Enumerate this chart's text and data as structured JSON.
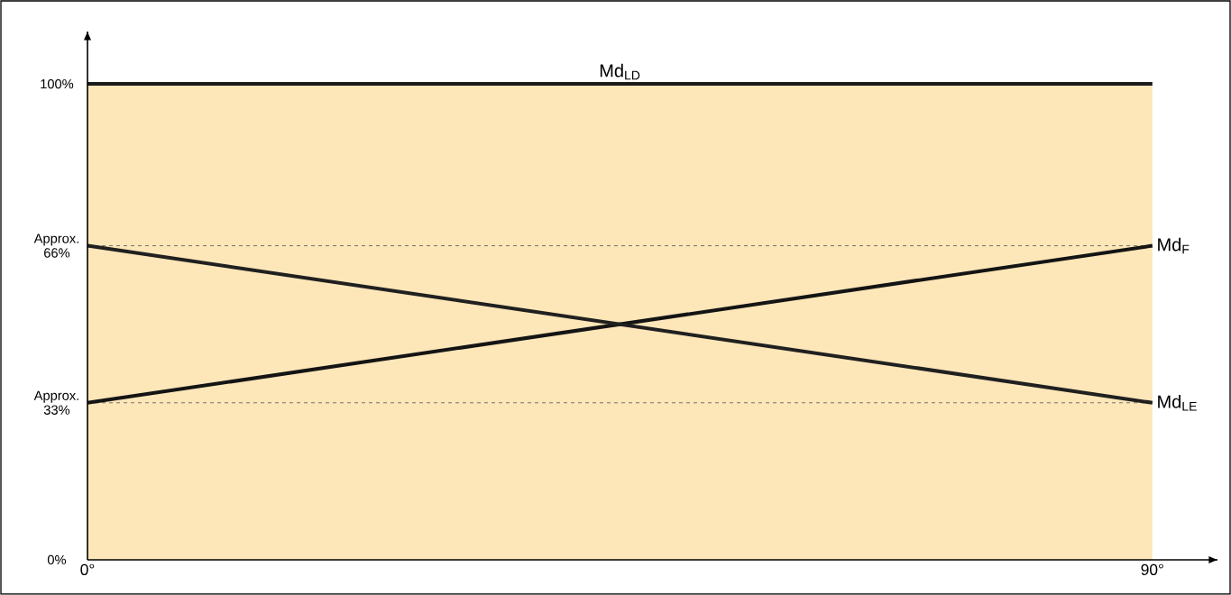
{
  "chart_data": {
    "type": "line",
    "xlim": [
      0,
      95.5
    ],
    "ylim": [
      0,
      111
    ],
    "xticks": [
      {
        "value": 0,
        "label": "0°"
      },
      {
        "value": 90,
        "label": "90°"
      }
    ],
    "yticks": [
      {
        "value": 0,
        "label": "0%"
      },
      {
        "value": 33,
        "label": "Approx. 33%"
      },
      {
        "value": 66,
        "label": "Approx. 66%"
      },
      {
        "value": 100,
        "label": "100%"
      }
    ],
    "x": [
      0,
      90
    ],
    "series": [
      {
        "name": "Md$_{LD}$",
        "color": "#1a1a1a",
        "values": [
          100,
          100
        ]
      },
      {
        "name": "Md$_{F}$",
        "color": "#141414",
        "values": [
          33,
          66
        ]
      },
      {
        "name": "Md$_{LE}$",
        "color": "#202020",
        "values": [
          66,
          33
        ]
      }
    ],
    "ref_lines": [
      {
        "axis": "y",
        "value": 66,
        "line_style": "dashed",
        "color": "#555555"
      },
      {
        "axis": "y",
        "value": 33,
        "line_style": "dashed",
        "color": "#555555"
      }
    ],
    "bands": [
      {
        "axis": "y",
        "from": 0,
        "to": 100,
        "color": "#fde6b8"
      }
    ],
    "grid": false,
    "marker": "none",
    "line_style": "solid"
  }
}
